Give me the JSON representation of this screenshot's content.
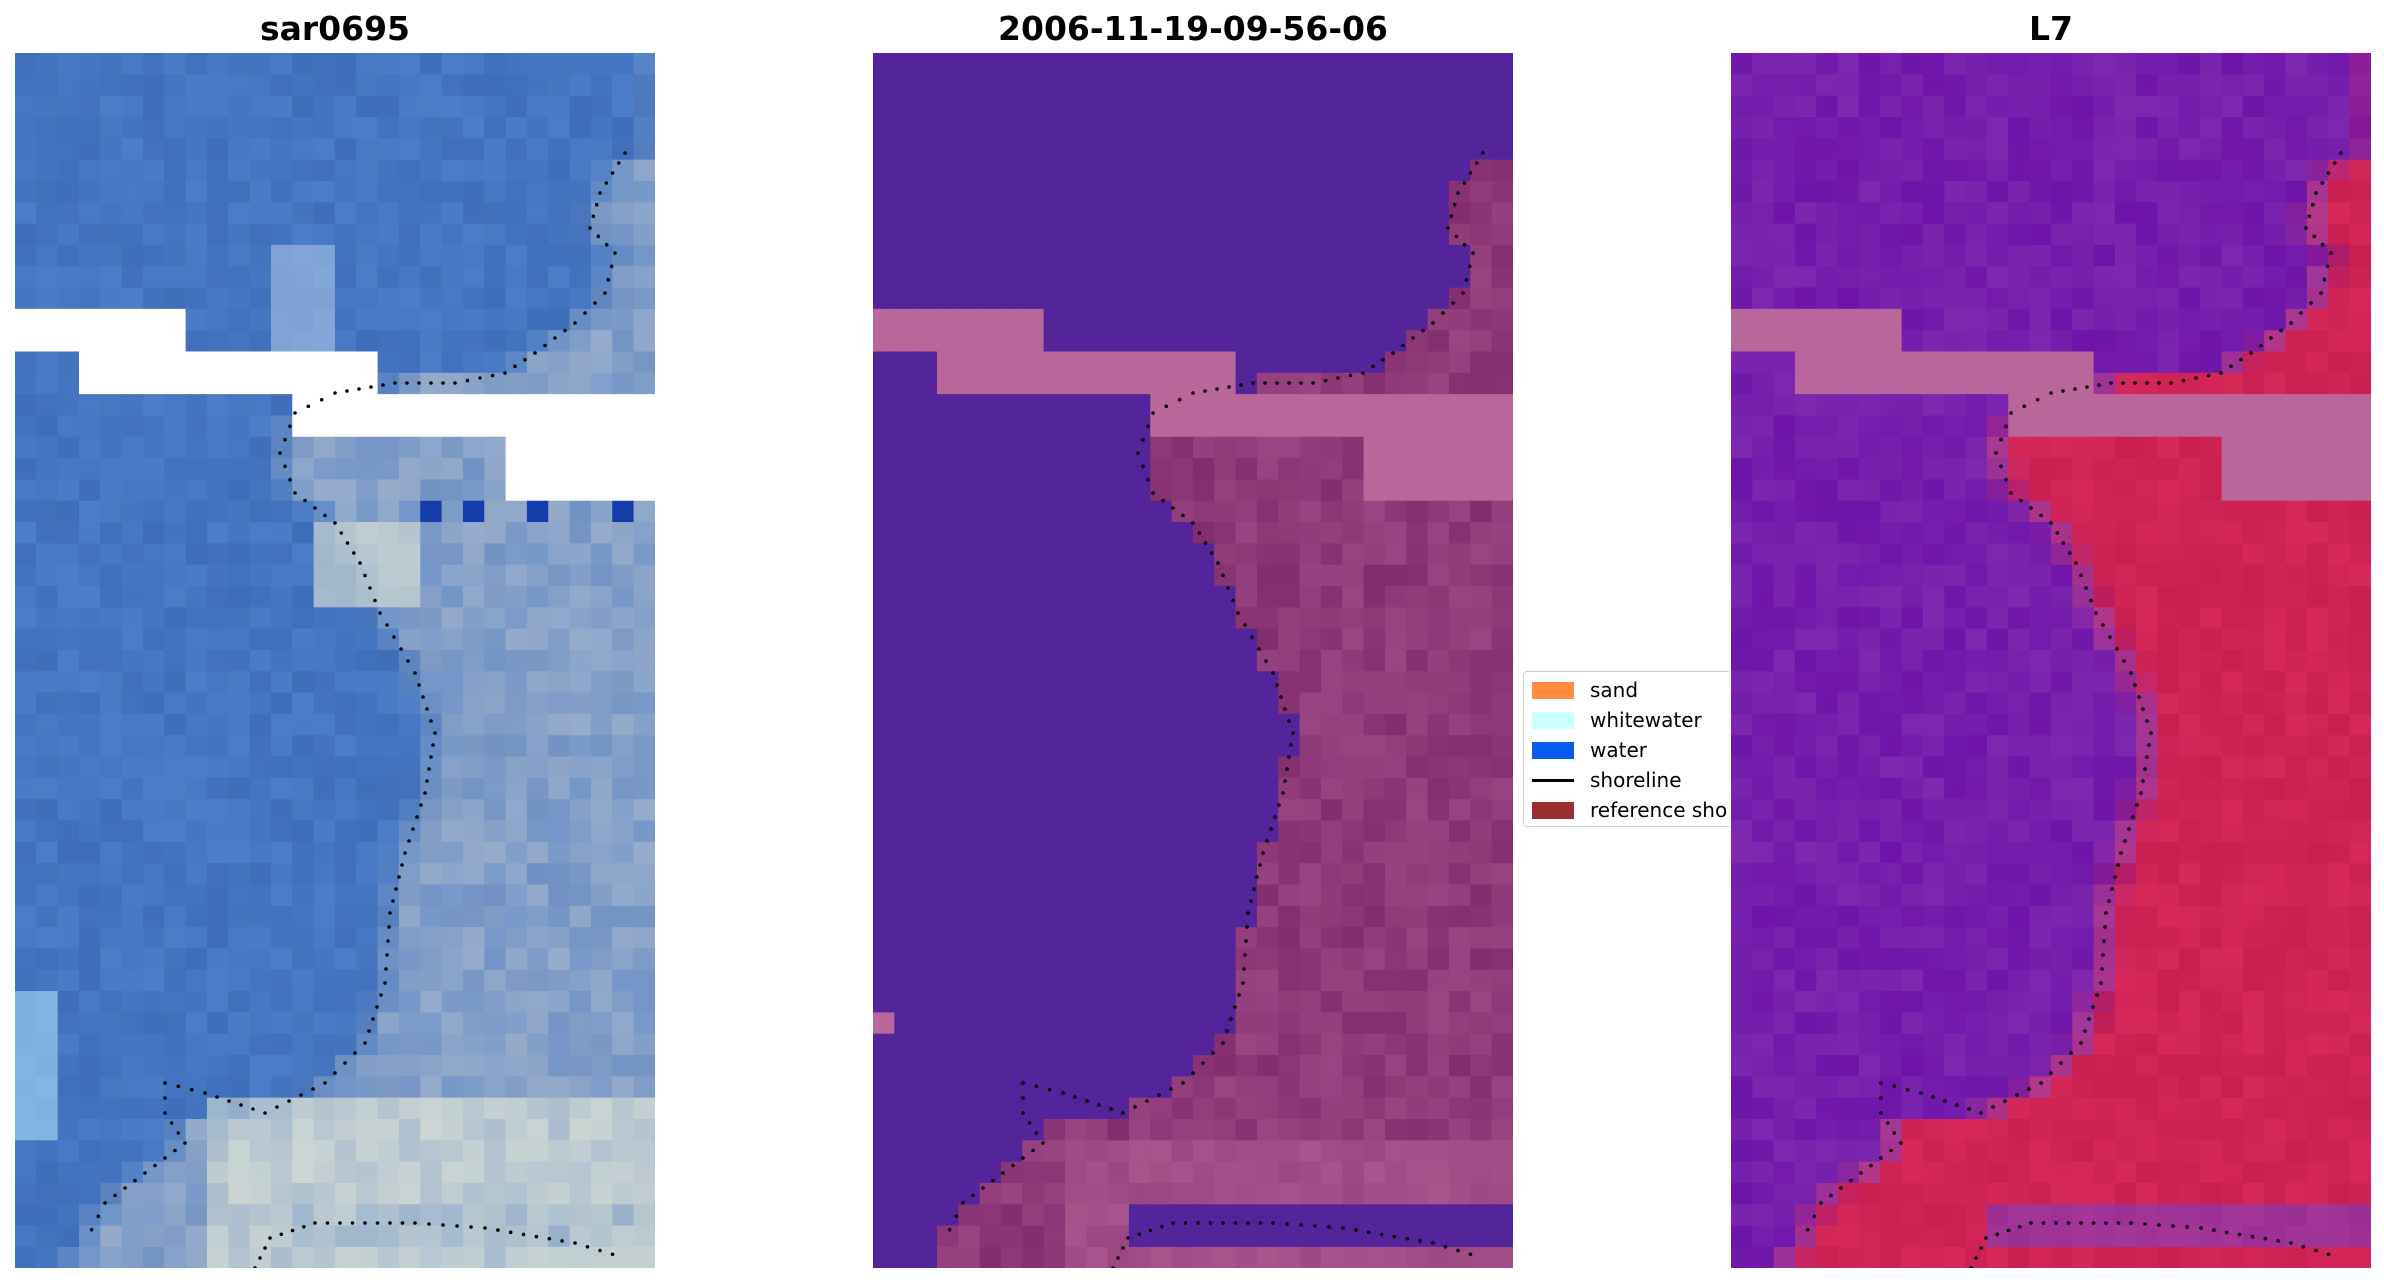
{
  "panels": [
    {
      "title": "sar0695",
      "style": "rgb"
    },
    {
      "title": "2006-11-19-09-56-06",
      "style": "classified"
    },
    {
      "title": "L7",
      "style": "index"
    }
  ],
  "legend": {
    "items": [
      {
        "label": "sand",
        "color": "#ff8c40",
        "kind": "patch"
      },
      {
        "label": "whitewater",
        "color": "#c8ffff",
        "kind": "patch"
      },
      {
        "label": "water",
        "color": "#0a5cf0",
        "kind": "patch"
      },
      {
        "label": "shoreline",
        "color": "#000000",
        "kind": "line"
      },
      {
        "label": "reference shoreline",
        "color": "#9b2d30",
        "kind": "patch"
      }
    ]
  },
  "colors": {
    "water_class": "#54249a",
    "land_overlay": "#b9679b",
    "shoreline_dots": "#000000"
  }
}
